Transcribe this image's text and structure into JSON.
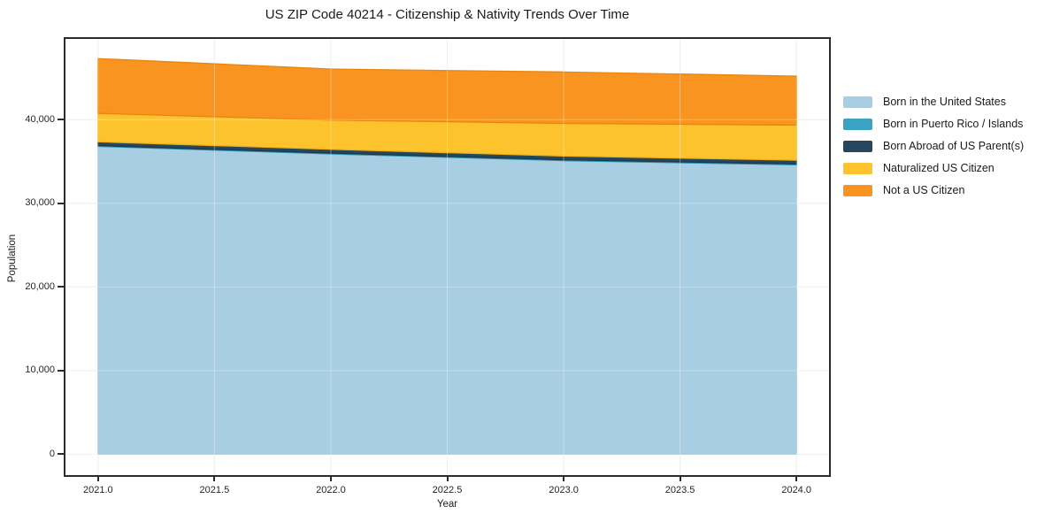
{
  "chart_data": {
    "type": "area",
    "stacked": true,
    "title": "US ZIP Code 40214 - Citizenship & Nativity Trends Over Time",
    "xlabel": "Year",
    "ylabel": "Population",
    "x": [
      2021,
      2022,
      2023,
      2024
    ],
    "series": [
      {
        "name": "Born in the United States",
        "color": "#a7cee3",
        "edge": "#90bdd6",
        "values": [
          36800,
          35900,
          35100,
          34600
        ]
      },
      {
        "name": "Born in Puerto Rico / Islands",
        "color": "#3aa3c2",
        "edge": "#2e93b0",
        "values": [
          100,
          100,
          100,
          100
        ]
      },
      {
        "name": "Born Abroad of US Parent(s)",
        "color": "#25465c",
        "edge": "#1c3a4c",
        "values": [
          450,
          450,
          450,
          450
        ]
      },
      {
        "name": "Naturalized US Citizen",
        "color": "#fcc32d",
        "edge": "#efb117",
        "values": [
          3400,
          3500,
          3900,
          4200
        ]
      },
      {
        "name": "Not a US Citizen",
        "color": "#f8941f",
        "edge": "#e8860e",
        "values": [
          6550,
          6100,
          6150,
          5850
        ]
      }
    ],
    "stack_totals": [
      47300,
      46050,
      45700,
      45200
    ],
    "xticks": {
      "values": [
        2021.0,
        2021.5,
        2022.0,
        2022.5,
        2023.0,
        2023.5,
        2024.0
      ],
      "labels": [
        "2021.0",
        "2021.5",
        "2022.0",
        "2022.5",
        "2023.0",
        "2023.5",
        "2024.0"
      ]
    },
    "yticks": {
      "values": [
        0,
        10000,
        20000,
        30000,
        40000
      ],
      "labels": [
        "0",
        "10,000",
        "20,000",
        "30,000",
        "40,000"
      ]
    },
    "xlim": [
      2020.86,
      2024.14
    ],
    "ylim": [
      -2500,
      49650
    ],
    "grid": true,
    "grid_color": "#e9e9e9",
    "grid_overlay_color": "rgba(255,255,255,0.35)",
    "legend_position": "right-outside"
  },
  "colors": {
    "spine": "#2b2b2b",
    "background": "#ffffff",
    "text": "#1a1a1a"
  }
}
